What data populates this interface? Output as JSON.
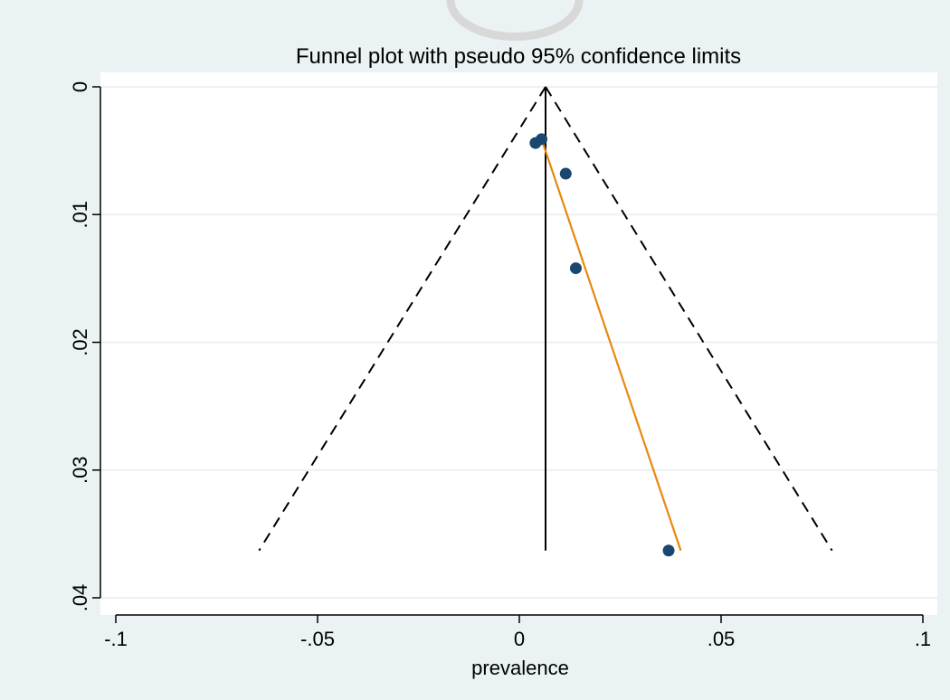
{
  "chart_data": {
    "type": "scatter",
    "title": "Funnel plot with pseudo 95% confidence limits",
    "xlabel": "prevalence",
    "ylabel": "",
    "xlim": [
      -0.1,
      0.1
    ],
    "ylim": [
      0,
      0.04
    ],
    "y_reversed": true,
    "x_ticks": [
      {
        "value": -0.1,
        "label": "-.1"
      },
      {
        "value": -0.05,
        "label": "-.05"
      },
      {
        "value": 0,
        "label": "0"
      },
      {
        "value": 0.05,
        "label": ".05"
      },
      {
        "value": 0.1,
        "label": ".1"
      }
    ],
    "y_ticks": [
      {
        "value": 0,
        "label": "0"
      },
      {
        "value": 0.01,
        "label": ".01"
      },
      {
        "value": 0.02,
        "label": ".02"
      },
      {
        "value": 0.03,
        "label": ".03"
      },
      {
        "value": 0.04,
        "label": ".04"
      }
    ],
    "grid": "horizontal",
    "points": [
      {
        "x": 0.004,
        "y": 0.0044
      },
      {
        "x": 0.0055,
        "y": 0.0041
      },
      {
        "x": 0.0115,
        "y": 0.0068
      },
      {
        "x": 0.014,
        "y": 0.0142
      },
      {
        "x": 0.037,
        "y": 0.0363
      }
    ],
    "pooled_estimate": {
      "x": 0.0065,
      "y_from": 0,
      "y_to": 0.0363
    },
    "confidence_limits": {
      "apex": {
        "x": 0.0065,
        "y": 0
      },
      "left_end": {
        "x": -0.0645,
        "y": 0.0363
      },
      "right_end": {
        "x": 0.0775,
        "y": 0.0363
      }
    },
    "regression_line": {
      "start": {
        "x": 0.0055,
        "y": 0.0041
      },
      "end": {
        "x": 0.04,
        "y": 0.0363
      }
    },
    "colors": {
      "background": "#eaf2f3",
      "plot_area": "#ffffff",
      "marker": "#1a476f",
      "regression": "#e8880e",
      "grid": "#eaf2f3",
      "watermark": "#d8d8d8"
    }
  }
}
